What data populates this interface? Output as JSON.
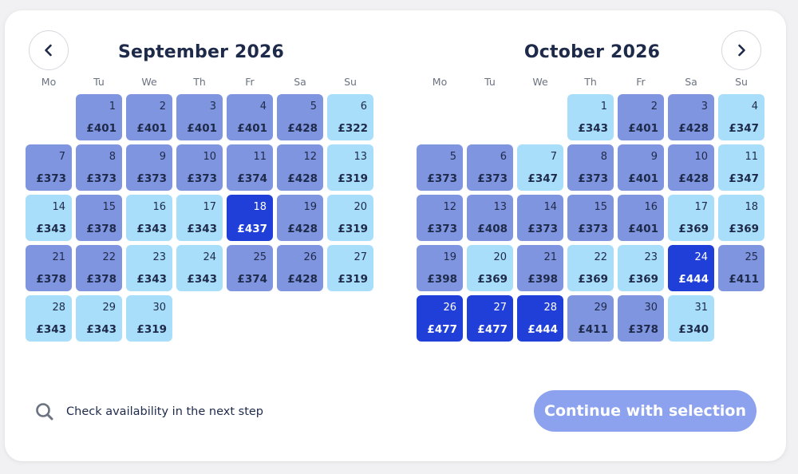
{
  "calendar": {
    "prev_label": "Previous month",
    "next_label": "Next month",
    "months": [
      {
        "title": "September 2026",
        "weekdays": [
          "Mo",
          "Tu",
          "We",
          "Th",
          "Fr",
          "Sa",
          "Su"
        ],
        "leading_blanks": 1,
        "days": [
          {
            "day": "1",
            "price": "£401",
            "level": "mid"
          },
          {
            "day": "2",
            "price": "£401",
            "level": "mid"
          },
          {
            "day": "3",
            "price": "£401",
            "level": "mid"
          },
          {
            "day": "4",
            "price": "£401",
            "level": "mid"
          },
          {
            "day": "5",
            "price": "£428",
            "level": "mid"
          },
          {
            "day": "6",
            "price": "£322",
            "level": "light"
          },
          {
            "day": "7",
            "price": "£373",
            "level": "mid"
          },
          {
            "day": "8",
            "price": "£373",
            "level": "mid"
          },
          {
            "day": "9",
            "price": "£373",
            "level": "mid"
          },
          {
            "day": "10",
            "price": "£373",
            "level": "mid"
          },
          {
            "day": "11",
            "price": "£374",
            "level": "mid"
          },
          {
            "day": "12",
            "price": "£428",
            "level": "mid"
          },
          {
            "day": "13",
            "price": "£319",
            "level": "light"
          },
          {
            "day": "14",
            "price": "£343",
            "level": "light"
          },
          {
            "day": "15",
            "price": "£378",
            "level": "mid"
          },
          {
            "day": "16",
            "price": "£343",
            "level": "light"
          },
          {
            "day": "17",
            "price": "£343",
            "level": "light"
          },
          {
            "day": "18",
            "price": "£437",
            "level": "dark"
          },
          {
            "day": "19",
            "price": "£428",
            "level": "mid"
          },
          {
            "day": "20",
            "price": "£319",
            "level": "light"
          },
          {
            "day": "21",
            "price": "£378",
            "level": "mid"
          },
          {
            "day": "22",
            "price": "£378",
            "level": "mid"
          },
          {
            "day": "23",
            "price": "£343",
            "level": "light"
          },
          {
            "day": "24",
            "price": "£343",
            "level": "light"
          },
          {
            "day": "25",
            "price": "£374",
            "level": "mid"
          },
          {
            "day": "26",
            "price": "£428",
            "level": "mid"
          },
          {
            "day": "27",
            "price": "£319",
            "level": "light"
          },
          {
            "day": "28",
            "price": "£343",
            "level": "light"
          },
          {
            "day": "29",
            "price": "£343",
            "level": "light"
          },
          {
            "day": "30",
            "price": "£319",
            "level": "light"
          }
        ]
      },
      {
        "title": "October 2026",
        "weekdays": [
          "Mo",
          "Tu",
          "We",
          "Th",
          "Fr",
          "Sa",
          "Su"
        ],
        "leading_blanks": 3,
        "days": [
          {
            "day": "1",
            "price": "£343",
            "level": "light"
          },
          {
            "day": "2",
            "price": "£401",
            "level": "mid"
          },
          {
            "day": "3",
            "price": "£428",
            "level": "mid"
          },
          {
            "day": "4",
            "price": "£347",
            "level": "light"
          },
          {
            "day": "5",
            "price": "£373",
            "level": "mid"
          },
          {
            "day": "6",
            "price": "£373",
            "level": "mid"
          },
          {
            "day": "7",
            "price": "£347",
            "level": "light"
          },
          {
            "day": "8",
            "price": "£373",
            "level": "mid"
          },
          {
            "day": "9",
            "price": "£401",
            "level": "mid"
          },
          {
            "day": "10",
            "price": "£428",
            "level": "mid"
          },
          {
            "day": "11",
            "price": "£347",
            "level": "light"
          },
          {
            "day": "12",
            "price": "£373",
            "level": "mid"
          },
          {
            "day": "13",
            "price": "£408",
            "level": "mid"
          },
          {
            "day": "14",
            "price": "£373",
            "level": "mid"
          },
          {
            "day": "15",
            "price": "£373",
            "level": "mid"
          },
          {
            "day": "16",
            "price": "£401",
            "level": "mid"
          },
          {
            "day": "17",
            "price": "£369",
            "level": "light"
          },
          {
            "day": "18",
            "price": "£369",
            "level": "light"
          },
          {
            "day": "19",
            "price": "£398",
            "level": "mid"
          },
          {
            "day": "20",
            "price": "£369",
            "level": "light"
          },
          {
            "day": "21",
            "price": "£398",
            "level": "mid"
          },
          {
            "day": "22",
            "price": "£369",
            "level": "light"
          },
          {
            "day": "23",
            "price": "£369",
            "level": "light"
          },
          {
            "day": "24",
            "price": "£444",
            "level": "dark"
          },
          {
            "day": "25",
            "price": "£411",
            "level": "mid"
          },
          {
            "day": "26",
            "price": "£477",
            "level": "dark"
          },
          {
            "day": "27",
            "price": "£477",
            "level": "dark"
          },
          {
            "day": "28",
            "price": "£444",
            "level": "dark"
          },
          {
            "day": "29",
            "price": "£411",
            "level": "mid"
          },
          {
            "day": "30",
            "price": "£378",
            "level": "mid"
          },
          {
            "day": "31",
            "price": "£340",
            "level": "light"
          }
        ]
      }
    ]
  },
  "footer": {
    "note_icon": "search-icon",
    "note_text": "Check availability in the next step",
    "continue_label": "Continue with selection"
  },
  "colors": {
    "light": "#a9defa",
    "mid": "#8095e0",
    "dark": "#1f3fd8",
    "button": "#8da2ee",
    "text": "#1e2a4a"
  }
}
